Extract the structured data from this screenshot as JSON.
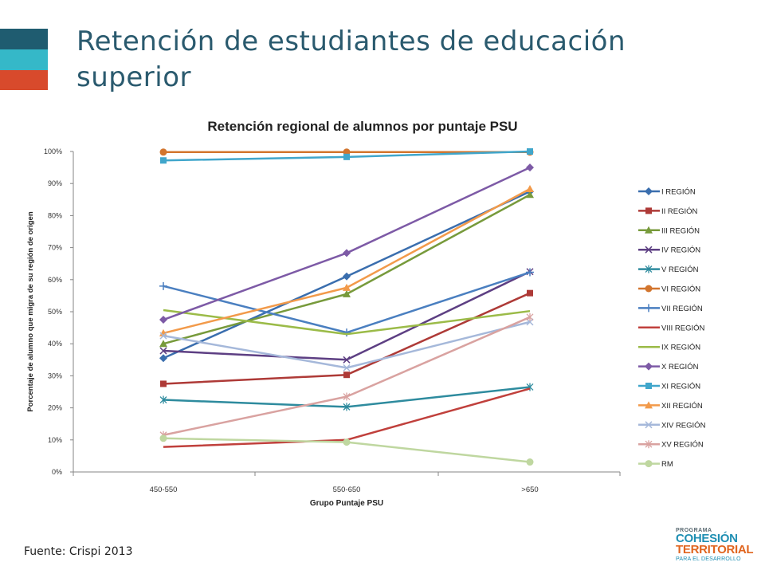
{
  "slide": {
    "title": "Retención de estudiantes de educación superior",
    "source": "Fuente: Crispi 2013",
    "accent_colors": [
      "#1f5c70",
      "#35b8c8",
      "#d84a2c"
    ]
  },
  "logo": {
    "line1": "PROGRAMA",
    "line2": "COHESIÓN",
    "line3": "TERRITORIAL",
    "line4": "PARA EL DESARROLLO"
  },
  "chart_data": {
    "type": "line",
    "title": "Retención regional de alumnos por puntaje PSU",
    "xlabel": "Grupo Puntaje PSU",
    "ylabel": "Porcentaje de alumno que migra de su región de origen",
    "categories": [
      "450-550",
      "550-650",
      ">650"
    ],
    "ylim": [
      0,
      100
    ],
    "yticks": [
      "0%",
      "10%",
      "20%",
      "30%",
      "40%",
      "50%",
      "60%",
      "70%",
      "80%",
      "90%",
      "100%"
    ],
    "grid": false,
    "legend_position": "right",
    "series": [
      {
        "name": "I REGIÓN",
        "color": "#3a6eae",
        "marker": "diamond",
        "values": [
          35.5,
          61,
          87.5
        ]
      },
      {
        "name": "II REGIÓN",
        "color": "#ae3a37",
        "marker": "square",
        "values": [
          27.5,
          30.3,
          55.8
        ]
      },
      {
        "name": "III REGIÓN",
        "color": "#779a3b",
        "marker": "triangle",
        "values": [
          40,
          55.5,
          86.5
        ]
      },
      {
        "name": "IV REGIÓN",
        "color": "#5d3f83",
        "marker": "x",
        "values": [
          37.8,
          35,
          62.5
        ]
      },
      {
        "name": "V REGIÓN",
        "color": "#2e8b9e",
        "marker": "star",
        "values": [
          22.5,
          20.3,
          26.5
        ]
      },
      {
        "name": "VI REGIÓN",
        "color": "#d2752e",
        "marker": "circle",
        "values": [
          99.8,
          99.8,
          99.8
        ]
      },
      {
        "name": "VII REGIÓN",
        "color": "#4a7fc0",
        "marker": "plus",
        "values": [
          58,
          43.5,
          62.3
        ]
      },
      {
        "name": "VIII REGIÓN",
        "color": "#c0403c",
        "marker": "none",
        "values": [
          7.8,
          10,
          26
        ]
      },
      {
        "name": "IX REGIÓN",
        "color": "#9bbb48",
        "marker": "none",
        "values": [
          50.5,
          43,
          50.2
        ]
      },
      {
        "name": "X REGIÓN",
        "color": "#7d5aa6",
        "marker": "diamond",
        "values": [
          47.5,
          68.3,
          95
        ]
      },
      {
        "name": "XI REGIÓN",
        "color": "#40a6cb",
        "marker": "square",
        "values": [
          97.2,
          98.3,
          100
        ]
      },
      {
        "name": "XII REGIÓN",
        "color": "#f29a4a",
        "marker": "triangle",
        "values": [
          43.3,
          57.5,
          88.3
        ]
      },
      {
        "name": "XIV REGIÓN",
        "color": "#a5b8da",
        "marker": "x",
        "values": [
          42.5,
          32.5,
          46.8
        ]
      },
      {
        "name": "XV REGIÓN",
        "color": "#d9a2a0",
        "marker": "star",
        "values": [
          11.5,
          23.5,
          48.3
        ]
      },
      {
        "name": "RM",
        "color": "#bfd7a0",
        "marker": "circle",
        "values": [
          10.5,
          9.3,
          3.1
        ]
      }
    ]
  }
}
